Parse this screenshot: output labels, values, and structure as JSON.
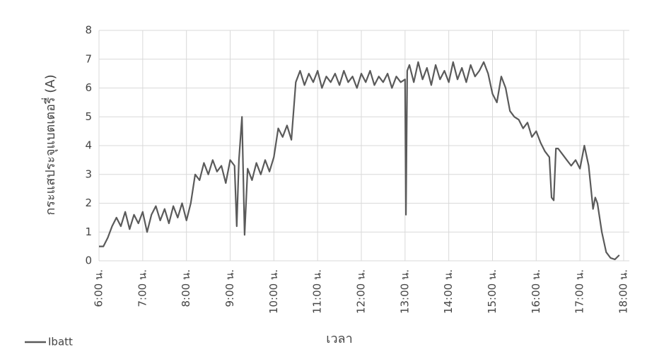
{
  "chart_data": {
    "type": "line",
    "x_label": "เวลา",
    "y_label": "กระแสประจุแบตเตอรี่ (A)",
    "x": [
      6.0,
      6.1,
      6.2,
      6.3,
      6.4,
      6.5,
      6.6,
      6.7,
      6.8,
      6.9,
      7.0,
      7.1,
      7.2,
      7.3,
      7.4,
      7.5,
      7.6,
      7.7,
      7.8,
      7.9,
      8.0,
      8.1,
      8.2,
      8.3,
      8.4,
      8.5,
      8.6,
      8.7,
      8.8,
      8.9,
      9.0,
      9.1,
      9.15,
      9.2,
      9.27,
      9.33,
      9.4,
      9.5,
      9.6,
      9.7,
      9.8,
      9.9,
      10.0,
      10.1,
      10.2,
      10.3,
      10.4,
      10.5,
      10.6,
      10.7,
      10.8,
      10.9,
      11.0,
      11.1,
      11.2,
      11.3,
      11.4,
      11.5,
      11.6,
      11.7,
      11.8,
      11.9,
      12.0,
      12.1,
      12.2,
      12.3,
      12.4,
      12.5,
      12.6,
      12.7,
      12.8,
      12.9,
      13.0,
      13.02,
      13.05,
      13.1,
      13.2,
      13.3,
      13.4,
      13.5,
      13.6,
      13.7,
      13.8,
      13.9,
      14.0,
      14.1,
      14.2,
      14.3,
      14.4,
      14.5,
      14.6,
      14.7,
      14.8,
      14.9,
      15.0,
      15.1,
      15.2,
      15.3,
      15.4,
      15.5,
      15.6,
      15.7,
      15.8,
      15.9,
      16.0,
      16.1,
      16.2,
      16.3,
      16.35,
      16.4,
      16.45,
      16.5,
      16.6,
      16.7,
      16.8,
      16.9,
      17.0,
      17.1,
      17.2,
      17.3,
      17.35,
      17.4,
      17.5,
      17.6,
      17.7,
      17.8,
      17.9
    ],
    "series": [
      {
        "name": "Ibatt",
        "color": "#5a5a5a",
        "values": [
          0.5,
          0.5,
          0.8,
          1.2,
          1.5,
          1.2,
          1.7,
          1.1,
          1.6,
          1.3,
          1.7,
          1.0,
          1.6,
          1.9,
          1.4,
          1.8,
          1.3,
          1.9,
          1.5,
          2.0,
          1.4,
          2.0,
          3.0,
          2.8,
          3.4,
          3.0,
          3.5,
          3.1,
          3.3,
          2.7,
          3.5,
          3.3,
          1.2,
          3.5,
          5.0,
          0.9,
          3.2,
          2.8,
          3.4,
          3.0,
          3.5,
          3.1,
          3.6,
          4.6,
          4.3,
          4.7,
          4.2,
          6.2,
          6.6,
          6.1,
          6.5,
          6.2,
          6.6,
          6.0,
          6.4,
          6.2,
          6.5,
          6.1,
          6.6,
          6.2,
          6.4,
          6.0,
          6.5,
          6.2,
          6.6,
          6.1,
          6.4,
          6.2,
          6.5,
          6.0,
          6.4,
          6.2,
          6.3,
          1.6,
          6.6,
          6.8,
          6.2,
          6.9,
          6.3,
          6.7,
          6.1,
          6.8,
          6.3,
          6.6,
          6.2,
          6.9,
          6.3,
          6.7,
          6.2,
          6.8,
          6.4,
          6.6,
          6.9,
          6.5,
          5.8,
          5.5,
          6.4,
          6.0,
          5.2,
          5.0,
          4.9,
          4.6,
          4.8,
          4.3,
          4.5,
          4.1,
          3.8,
          3.6,
          2.2,
          2.1,
          3.9,
          3.9,
          3.7,
          3.5,
          3.3,
          3.5,
          3.2,
          4.0,
          3.3,
          1.8,
          2.2,
          2.0,
          1.0,
          0.3,
          0.1,
          0.05,
          0.2
        ]
      }
    ],
    "xlim": [
      6,
      18
    ],
    "xticks": [
      {
        "value": 6,
        "label": "6:00 น."
      },
      {
        "value": 7,
        "label": "7:00 น."
      },
      {
        "value": 8,
        "label": "8:00 น."
      },
      {
        "value": 9,
        "label": "9:00 น."
      },
      {
        "value": 10,
        "label": "10:00 น."
      },
      {
        "value": 11,
        "label": "11:00 น."
      },
      {
        "value": 12,
        "label": "12:00 น."
      },
      {
        "value": 13,
        "label": "13:00 น."
      },
      {
        "value": 14,
        "label": "14:00 น."
      },
      {
        "value": 15,
        "label": "15:00 น."
      },
      {
        "value": 16,
        "label": "16:00 น."
      },
      {
        "value": 17,
        "label": "17:00 น."
      },
      {
        "value": 18,
        "label": "18:00 น."
      }
    ],
    "ylim": [
      0,
      8
    ],
    "yticks": [
      0,
      1,
      2,
      3,
      4,
      5,
      6,
      7,
      8
    ],
    "grid": true,
    "legend": "bottom-left"
  }
}
